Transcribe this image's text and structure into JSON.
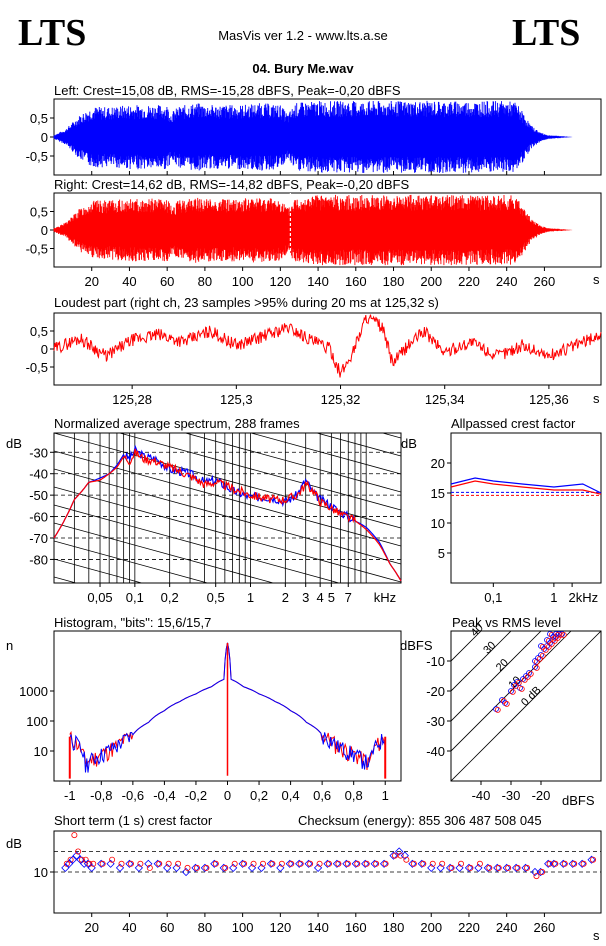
{
  "header": {
    "logo_left": "LTS",
    "logo_right": "LTS",
    "app_title": "MasVis ver 1.2 - www.lts.a.se",
    "file_title": "04. Bury Me.wav"
  },
  "colors": {
    "left": "#0000ff",
    "right": "#ff0000",
    "axis": "#000000"
  },
  "chart_data": [
    {
      "id": "left",
      "type": "line",
      "title": "Left: Crest=15,08 dB, RMS=-15,28 dBFS, Peak=-0,20 dBFS",
      "y_ticks": [
        "0,5",
        "0",
        "-0,5"
      ],
      "ylim": [
        -1,
        1
      ],
      "xlim": [
        0,
        290
      ],
      "envelope": {
        "x": [
          0,
          6,
          9,
          14,
          20,
          30,
          40,
          50,
          60,
          62,
          66,
          70,
          75,
          82,
          90,
          100,
          110,
          120,
          124,
          128,
          140,
          160,
          180,
          190,
          200,
          220,
          240,
          245,
          248,
          253,
          258,
          262,
          268,
          275,
          290
        ],
        "amp": [
          0.05,
          0.2,
          0.35,
          0.6,
          0.8,
          0.8,
          0.85,
          0.85,
          0.85,
          0.65,
          0.8,
          0.85,
          0.9,
          0.85,
          0.85,
          0.85,
          0.9,
          0.85,
          0.6,
          0.9,
          0.95,
          0.95,
          0.95,
          0.95,
          0.95,
          0.95,
          0.95,
          0.92,
          0.7,
          0.3,
          0.12,
          0.05,
          0.03,
          0.0,
          0.0
        ]
      }
    },
    {
      "id": "right",
      "type": "line",
      "title": "Right: Crest=14,62 dB, RMS=-14,82 dBFS, Peak=-0,20 dBFS",
      "y_ticks": [
        "0,5",
        "0",
        "-0,5"
      ],
      "x_ticks": [
        "20",
        "40",
        "60",
        "80",
        "100",
        "120",
        "140",
        "160",
        "180",
        "200",
        "220",
        "240",
        "260"
      ],
      "x_tick_values": [
        20,
        40,
        60,
        80,
        100,
        120,
        140,
        160,
        180,
        200,
        220,
        240,
        260
      ],
      "x_unit": "s",
      "ylim": [
        -1,
        1
      ],
      "xlim": [
        0,
        290
      ],
      "envelope": {
        "x": [
          0,
          6,
          9,
          14,
          20,
          30,
          40,
          50,
          60,
          62,
          66,
          70,
          75,
          82,
          90,
          100,
          110,
          120,
          124,
          128,
          140,
          160,
          180,
          190,
          200,
          220,
          240,
          245,
          248,
          253,
          258,
          262,
          268,
          275,
          290
        ],
        "amp": [
          0.05,
          0.2,
          0.35,
          0.6,
          0.8,
          0.8,
          0.85,
          0.85,
          0.85,
          0.65,
          0.8,
          0.85,
          0.9,
          0.85,
          0.85,
          0.85,
          0.9,
          0.85,
          0.6,
          0.9,
          0.95,
          0.95,
          0.95,
          0.95,
          0.95,
          0.95,
          0.95,
          0.92,
          0.7,
          0.3,
          0.12,
          0.05,
          0.03,
          0.0,
          0.0
        ]
      },
      "marker_x": 125.32
    },
    {
      "id": "loudest",
      "type": "line",
      "title": "Loudest part (right ch, 23 samples >95% during 20 ms at 125,32 s)",
      "y_ticks": [
        "0,5",
        "0",
        "-0,5"
      ],
      "x_ticks": [
        "125,28",
        "125,3",
        "125,32",
        "125,34",
        "125,36"
      ],
      "x_tick_values": [
        125.28,
        125.3,
        125.32,
        125.34,
        125.36
      ],
      "x_unit": "s",
      "xlim": [
        125.265,
        125.37
      ],
      "ylim": [
        -1,
        1
      ],
      "x": [
        125.265,
        125.27,
        125.275,
        125.28,
        125.285,
        125.29,
        125.295,
        125.3,
        125.305,
        125.31,
        125.315,
        125.318,
        125.32,
        125.322,
        125.325,
        125.328,
        125.33,
        125.333,
        125.336,
        125.34,
        125.345,
        125.35,
        125.355,
        125.36,
        125.365,
        125.37
      ],
      "y": [
        0.0,
        0.3,
        -0.2,
        0.25,
        0.4,
        0.2,
        0.5,
        0.1,
        0.35,
        0.6,
        0.2,
        0.0,
        -0.7,
        -0.2,
        0.9,
        0.6,
        -0.4,
        0.1,
        0.5,
        -0.1,
        0.2,
        -0.2,
        0.1,
        -0.2,
        0.1,
        0.4
      ]
    },
    {
      "id": "spectrum",
      "type": "line",
      "title": "Normalized average spectrum, 288 frames",
      "y_unit": "dB",
      "y_ticks": [
        "-30",
        "-40",
        "-50",
        "-60",
        "-70",
        "-80"
      ],
      "y_tick_values": [
        -30,
        -40,
        -50,
        -60,
        -70,
        -80
      ],
      "ylim": [
        -91,
        -21
      ],
      "x_ticks": [
        "0,05",
        "0,1",
        "0,2",
        "0,5",
        "1",
        "2",
        "3",
        "4",
        "5",
        "7",
        "kHz"
      ],
      "x_tick_values": [
        0.05,
        0.1,
        0.2,
        0.5,
        1,
        2,
        3,
        4,
        5,
        7
      ],
      "x_scale": "log",
      "xlim": [
        0.02,
        20
      ],
      "x": [
        0.02,
        0.03,
        0.04,
        0.05,
        0.06,
        0.07,
        0.08,
        0.09,
        0.1,
        0.12,
        0.15,
        0.2,
        0.3,
        0.4,
        0.5,
        0.7,
        1,
        1.5,
        2,
        2.5,
        3,
        3.5,
        4,
        5,
        6,
        8,
        10,
        13,
        16,
        20
      ],
      "y_left": [
        -70,
        -52,
        -44,
        -42,
        -40,
        -36,
        -31,
        -33,
        -29,
        -32,
        -33,
        -38,
        -40,
        -44,
        -43,
        -48,
        -51,
        -51,
        -53,
        -50,
        -43,
        -49,
        -52,
        -55,
        -58,
        -62,
        -65,
        -72,
        -82,
        -90
      ],
      "y_right": [
        -70,
        -52,
        -44,
        -43,
        -40,
        -37,
        -32,
        -34,
        -30,
        -33,
        -34,
        -37,
        -41,
        -45,
        -44,
        -47,
        -50,
        -52,
        -52,
        -50,
        -45,
        -48,
        -53,
        -56,
        -59,
        -62,
        -66,
        -73,
        -82,
        -90
      ]
    },
    {
      "id": "allpassed",
      "type": "line",
      "title": "Allpassed crest factor",
      "y_unit": "dB",
      "y_ticks": [
        "20",
        "15",
        "10",
        "5"
      ],
      "y_tick_values": [
        20,
        15,
        10,
        5
      ],
      "ylim": [
        0,
        25
      ],
      "x_ticks": [
        "0,1",
        "1",
        "2",
        "kHz"
      ],
      "x_tick_values": [
        0.1,
        1,
        2
      ],
      "x_scale": "log",
      "xlim": [
        0.02,
        6
      ],
      "x": [
        0.02,
        0.05,
        0.1,
        0.3,
        1,
        3,
        6
      ],
      "y_left": [
        16.5,
        17.5,
        17,
        16.5,
        16,
        16.5,
        15
      ],
      "y_right": [
        16,
        17,
        16.5,
        16,
        15.5,
        15.5,
        14.8
      ],
      "ref_left": 15.1,
      "ref_right": 14.6
    },
    {
      "id": "histogram",
      "type": "line",
      "title": "Histogram, \"bits\": 15,6/15,7",
      "y_unit": "n",
      "y_ticks": [
        "1000",
        "100",
        "10"
      ],
      "y_tick_values": [
        1000,
        100,
        10
      ],
      "y_scale": "log",
      "ylim": [
        1,
        100000
      ],
      "x_ticks": [
        "-1",
        "-0,8",
        "-0,6",
        "-0,4",
        "-0,2",
        "0",
        "0,2",
        "0,4",
        "0,6",
        "0,8",
        "1"
      ],
      "x_tick_values": [
        -1,
        -0.8,
        -0.6,
        -0.4,
        -0.2,
        0,
        0.2,
        0.4,
        0.6,
        0.8,
        1
      ],
      "xlim": [
        -1.1,
        1.1
      ],
      "x": [
        -1,
        -0.9,
        -0.8,
        -0.7,
        -0.6,
        -0.5,
        -0.4,
        -0.3,
        -0.2,
        -0.1,
        -0.02,
        0,
        0.02,
        0.1,
        0.2,
        0.3,
        0.4,
        0.5,
        0.6,
        0.7,
        0.8,
        0.9,
        1
      ],
      "y": [
        30,
        4,
        8,
        15,
        35,
        90,
        220,
        450,
        800,
        1400,
        2500,
        40000,
        2500,
        1400,
        800,
        450,
        220,
        90,
        35,
        15,
        8,
        4,
        30
      ]
    },
    {
      "id": "peak_vs_rms",
      "type": "scatter",
      "title": "Peak vs RMS level",
      "y_unit": "dBFS",
      "x_unit": "dBFS",
      "y_ticks": [
        "-10",
        "-20",
        "-30",
        "-40"
      ],
      "y_tick_values": [
        -10,
        -20,
        -30,
        -40
      ],
      "x_ticks": [
        "-40",
        "-30",
        "-20"
      ],
      "x_tick_values": [
        -40,
        -30,
        -20
      ],
      "xlim": [
        -50,
        0
      ],
      "ylim": [
        -50,
        0
      ],
      "crest_lines": [
        "40",
        "30",
        "20",
        "10",
        "0 dB"
      ],
      "crest_line_values": [
        40,
        30,
        20,
        10,
        0
      ],
      "points": [
        [
          -35,
          -26
        ],
        [
          -33,
          -23
        ],
        [
          -30,
          -20
        ],
        [
          -28,
          -17
        ],
        [
          -26,
          -16
        ],
        [
          -25,
          -15
        ],
        [
          -22,
          -10
        ],
        [
          -20,
          -8
        ],
        [
          -19,
          -6
        ],
        [
          -18,
          -5
        ],
        [
          -17,
          -4
        ],
        [
          -16,
          -3
        ],
        [
          -15,
          -2
        ],
        [
          -14,
          -1
        ],
        [
          -13,
          -1
        ],
        [
          -21,
          -9
        ],
        [
          -24,
          -14
        ],
        [
          -27,
          -19
        ],
        [
          -32,
          -24
        ],
        [
          -29,
          -18
        ],
        [
          -20,
          -5
        ],
        [
          -18,
          -3
        ],
        [
          -16,
          -2
        ],
        [
          -22,
          -12
        ],
        [
          -17,
          -1
        ],
        [
          -15,
          -1
        ]
      ]
    },
    {
      "id": "crest_short",
      "type": "scatter",
      "title": "Short term (1 s) crest factor",
      "checksum": "Checksum (energy):   855 306 487 508 045",
      "y_unit": "dB",
      "y_ticks": [
        "10"
      ],
      "y_tick_values": [
        10
      ],
      "ylim": [
        0,
        20
      ],
      "x_ticks": [
        "20",
        "40",
        "60",
        "80",
        "100",
        "120",
        "140",
        "160",
        "180",
        "200",
        "220",
        "240",
        "260"
      ],
      "x_tick_values": [
        20,
        40,
        60,
        80,
        100,
        120,
        140,
        160,
        180,
        200,
        220,
        240,
        260
      ],
      "x_unit": "s",
      "xlim": [
        0,
        290
      ],
      "dash_levels": [
        15,
        10
      ],
      "x": [
        6,
        8,
        10,
        12,
        14,
        16,
        18,
        20,
        25,
        30,
        35,
        40,
        45,
        50,
        55,
        60,
        65,
        70,
        75,
        80,
        85,
        90,
        95,
        100,
        105,
        110,
        115,
        120,
        125,
        130,
        135,
        140,
        145,
        150,
        155,
        160,
        165,
        170,
        175,
        180,
        183,
        186,
        190,
        195,
        200,
        205,
        210,
        215,
        220,
        225,
        230,
        235,
        240,
        245,
        250,
        255,
        258,
        262,
        265,
        270,
        275,
        280,
        285
      ],
      "y_left": [
        11,
        12,
        13,
        14,
        13,
        12,
        12,
        11,
        12,
        12,
        11,
        12,
        11,
        12,
        12,
        11,
        11,
        10,
        11,
        11,
        12,
        11,
        11,
        12,
        11,
        11,
        12,
        11,
        12,
        12,
        12,
        11,
        12,
        12,
        12,
        12,
        12,
        12,
        12,
        14,
        15,
        14,
        12,
        12,
        11,
        11,
        11,
        11,
        11,
        11,
        11,
        11,
        11,
        11,
        11,
        10,
        10,
        12,
        12,
        12,
        12,
        12,
        13
      ],
      "y_right": [
        12,
        13,
        19,
        15,
        13,
        13,
        12,
        12,
        12,
        13,
        12,
        12,
        12,
        11,
        12,
        12,
        12,
        11,
        11,
        11,
        12,
        11,
        12,
        12,
        12,
        12,
        12,
        12,
        12,
        12,
        12,
        12,
        12,
        12,
        12,
        12,
        12,
        12,
        12,
        14,
        14,
        13,
        12,
        12,
        12,
        12,
        11,
        12,
        11,
        12,
        11,
        11,
        11,
        11,
        11,
        9,
        10,
        12,
        12,
        12,
        12,
        12,
        13
      ]
    }
  ]
}
